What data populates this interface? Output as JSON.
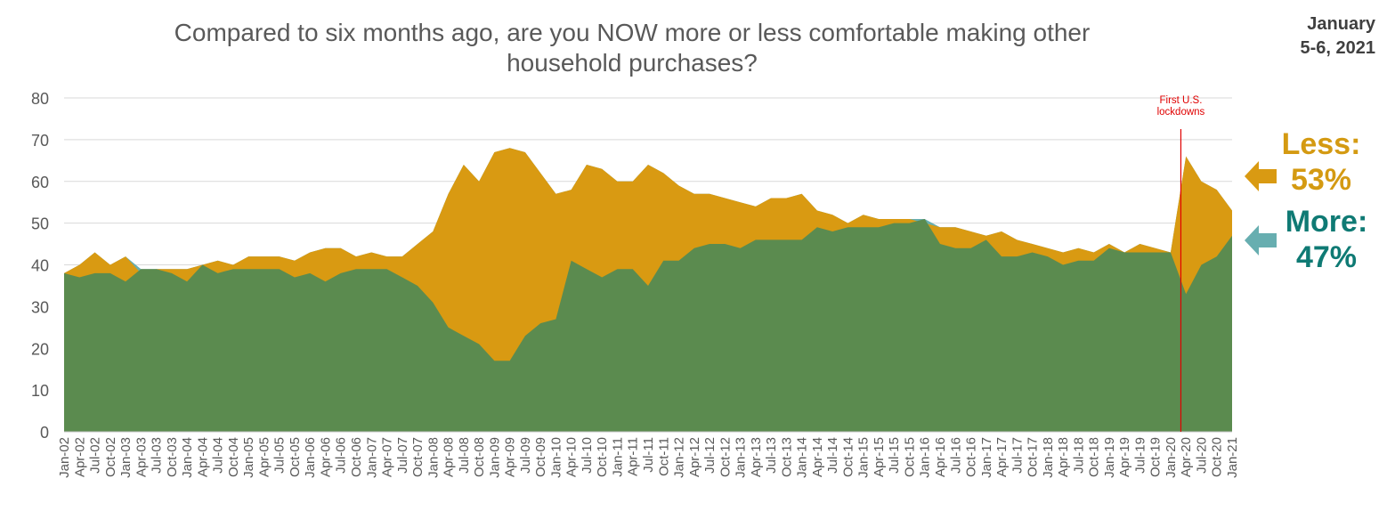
{
  "title": "Compared to six months ago, are you NOW more or less comfortable making other household purchases?",
  "date_label": [
    "January",
    "5-6, 2021"
  ],
  "annotation": {
    "label": [
      "First U.S.",
      "lockdowns"
    ],
    "x": "Mar-20",
    "color": "#e00000"
  },
  "callouts": {
    "less": {
      "label": "Less:",
      "value": "53%",
      "color": "#d49a12"
    },
    "more": {
      "label": "More:",
      "value": "47%",
      "color": "#0f7a74"
    }
  },
  "colors": {
    "less": "#d99a12",
    "more_area": "#5b8b4f",
    "more_above_less": "#67aeb0",
    "annotation": "#e00000"
  },
  "chart_data": {
    "type": "area",
    "title": "Compared to six months ago, are you NOW more or less comfortable making other household purchases?",
    "xlabel": "",
    "ylabel": "",
    "ylim": [
      0,
      80
    ],
    "yticks": [
      0,
      10,
      20,
      30,
      40,
      50,
      60,
      70,
      80
    ],
    "grid": true,
    "x_tick_labels": [
      "Jan-02",
      "Apr-02",
      "Jul-02",
      "Oct-02",
      "Jan-03",
      "Apr-03",
      "Jul-03",
      "Oct-03",
      "Jan-04",
      "Apr-04",
      "Jul-04",
      "Oct-04",
      "Jan-05",
      "Apr-05",
      "Jul-05",
      "Oct-05",
      "Jan-06",
      "Apr-06",
      "Jul-06",
      "Oct-06",
      "Jan-07",
      "Apr-07",
      "Jul-07",
      "Oct-07",
      "Jan-08",
      "Apr-08",
      "Jul-08",
      "Oct-08",
      "Jan-09",
      "Apr-09",
      "Jul-09",
      "Oct-09",
      "Jan-10",
      "Apr-10",
      "Jul-10",
      "Oct-10",
      "Jan-11",
      "Apr-11",
      "Jul-11",
      "Oct-11",
      "Jan-12",
      "Apr-12",
      "Jul-12",
      "Oct-12",
      "Jan-13",
      "Apr-13",
      "Jul-13",
      "Oct-13",
      "Jan-14",
      "Apr-14",
      "Jul-14",
      "Oct-14",
      "Jan-15",
      "Apr-15",
      "Jul-15",
      "Oct-15",
      "Jan-16",
      "Apr-16",
      "Jul-16",
      "Oct-16",
      "Jan-17",
      "Apr-17",
      "Jul-17",
      "Oct-17",
      "Jan-18",
      "Apr-18",
      "Jul-18",
      "Oct-18",
      "Jan-19",
      "Apr-19",
      "Jul-19",
      "Oct-19",
      "Jan-20",
      "Apr-20",
      "Jul-20",
      "Oct-20",
      "Jan-21"
    ],
    "x": [
      "Jan-02",
      "Apr-02",
      "Jul-02",
      "Oct-02",
      "Jan-03",
      "Apr-03",
      "Jul-03",
      "Oct-03",
      "Jan-04",
      "Apr-04",
      "Jul-04",
      "Oct-04",
      "Jan-05",
      "Apr-05",
      "Jul-05",
      "Oct-05",
      "Jan-06",
      "Apr-06",
      "Jul-06",
      "Oct-06",
      "Jan-07",
      "Apr-07",
      "Jul-07",
      "Oct-07",
      "Jan-08",
      "Apr-08",
      "Jul-08",
      "Oct-08",
      "Jan-09",
      "Apr-09",
      "Jul-09",
      "Oct-09",
      "Jan-10",
      "Apr-10",
      "Jul-10",
      "Oct-10",
      "Jan-11",
      "Apr-11",
      "Jul-11",
      "Oct-11",
      "Jan-12",
      "Apr-12",
      "Jul-12",
      "Oct-12",
      "Jan-13",
      "Apr-13",
      "Jul-13",
      "Oct-13",
      "Jan-14",
      "Apr-14",
      "Jul-14",
      "Oct-14",
      "Jan-15",
      "Apr-15",
      "Jul-15",
      "Oct-15",
      "Jan-16",
      "Apr-16",
      "Jul-16",
      "Oct-16",
      "Jan-17",
      "Apr-17",
      "Jul-17",
      "Oct-17",
      "Jan-18",
      "Apr-18",
      "Jul-18",
      "Oct-18",
      "Jan-19",
      "Apr-19",
      "Jul-19",
      "Oct-19",
      "Jan-20",
      "Apr-20",
      "Jul-20",
      "Oct-20",
      "Jan-21"
    ],
    "series": [
      {
        "name": "Less",
        "values": [
          38,
          40,
          43,
          40,
          42,
          38,
          39,
          39,
          39,
          40,
          41,
          40,
          42,
          42,
          42,
          41,
          43,
          44,
          44,
          42,
          43,
          42,
          42,
          45,
          48,
          57,
          64,
          60,
          67,
          68,
          67,
          62,
          57,
          58,
          64,
          63,
          60,
          60,
          64,
          62,
          59,
          57,
          57,
          56,
          55,
          54,
          56,
          56,
          57,
          53,
          52,
          50,
          52,
          51,
          51,
          51,
          50,
          49,
          49,
          48,
          47,
          48,
          46,
          45,
          44,
          43,
          44,
          43,
          45,
          43,
          45,
          44,
          43,
          66,
          60,
          58,
          53
        ]
      },
      {
        "name": "More",
        "values": [
          38,
          37,
          38,
          38,
          36,
          39,
          39,
          38,
          36,
          40,
          38,
          39,
          39,
          39,
          39,
          37,
          38,
          36,
          38,
          39,
          39,
          39,
          37,
          35,
          31,
          25,
          23,
          21,
          17,
          17,
          23,
          26,
          27,
          41,
          39,
          37,
          39,
          39,
          35,
          41,
          41,
          44,
          45,
          45,
          44,
          46,
          46,
          46,
          46,
          49,
          48,
          49,
          49,
          49,
          50,
          50,
          51,
          45,
          44,
          44,
          46,
          42,
          42,
          43,
          42,
          40,
          41,
          41,
          44,
          43,
          43,
          43,
          43,
          33,
          40,
          42,
          47
        ]
      }
    ]
  }
}
